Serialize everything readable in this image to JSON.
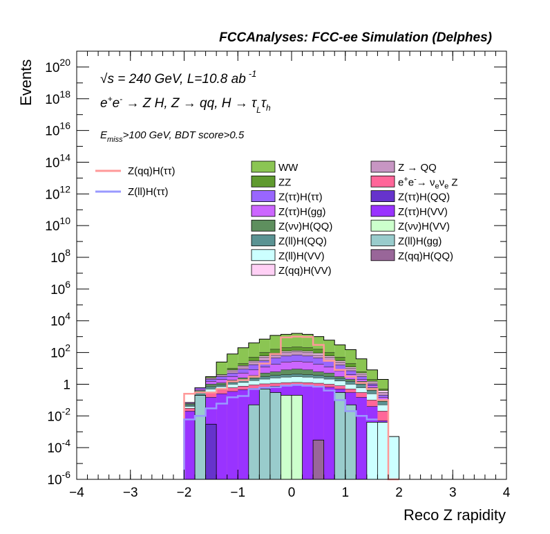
{
  "chart_data": {
    "type": "histogram",
    "title": "FCCAnalyses: FCC-ee Simulation (Delphes)",
    "xlabel": "Reco Z rapidity",
    "ylabel": "Events",
    "xlim": [
      -4,
      4
    ],
    "ylim": [
      1e-06,
      1e+21
    ],
    "yscale": "log",
    "grid": false,
    "legend_placement": "upper-center",
    "annotations": [
      {
        "id": "energy",
        "parts": [
          "√",
          "s",
          " = 240 GeV, L=10.8 ab",
          "-1"
        ]
      },
      {
        "id": "process",
        "parts": [
          "e",
          "+",
          "e",
          "-",
          " → Z H, Z  → qq, H  → τ",
          "L",
          "τ",
          "h"
        ]
      },
      {
        "id": "cut",
        "parts": [
          "E",
          "miss",
          ">100 GeV, BDT score>0.5"
        ]
      }
    ],
    "x_ticks": [
      -4,
      -3,
      -2,
      -1,
      0,
      1,
      2,
      3,
      4
    ],
    "x_tick_labels": [
      "−4",
      "−3",
      "−2",
      "−1",
      "0",
      "1",
      "2",
      "3",
      "4"
    ],
    "y_ticks": [
      {
        "value": 1e+20,
        "base": "10",
        "exp": "20"
      },
      {
        "value": 1e+18,
        "base": "10",
        "exp": "18"
      },
      {
        "value": 1e+16,
        "base": "10",
        "exp": "16"
      },
      {
        "value": 100000000000000.0,
        "base": "10",
        "exp": "14"
      },
      {
        "value": 1000000000000.0,
        "base": "10",
        "exp": "12"
      },
      {
        "value": 10000000000.0,
        "base": "10",
        "exp": "10"
      },
      {
        "value": 100000000.0,
        "base": "10",
        "exp": "8"
      },
      {
        "value": 1000000.0,
        "base": "10",
        "exp": "6"
      },
      {
        "value": 10000.0,
        "base": "10",
        "exp": "4"
      },
      {
        "value": 100.0,
        "base": "10",
        "exp": "2"
      },
      {
        "value": 1,
        "base": "1",
        "exp": ""
      },
      {
        "value": 0.01,
        "base": "10",
        "exp": "-2"
      },
      {
        "value": 0.0001,
        "base": "10",
        "exp": "-4"
      },
      {
        "value": 1e-06,
        "base": "10",
        "exp": "-6"
      }
    ],
    "bin_edges": [
      -2.0,
      -1.8,
      -1.6,
      -1.4,
      -1.2,
      -1.0,
      -0.8,
      -0.6,
      -0.4,
      -0.2,
      0.0,
      0.2,
      0.4,
      0.6,
      0.8,
      1.0,
      1.2,
      1.4,
      1.6,
      1.8,
      2.0
    ],
    "stack_bands": [
      {
        "name": "WW",
        "color": "#8bc553",
        "tops": [
          0.07,
          0.6,
          3,
          25,
          80,
          200,
          400,
          700,
          1200,
          1400,
          1600,
          1400,
          1000,
          600,
          300,
          150,
          40,
          8,
          2,
          null
        ]
      },
      {
        "name": "ZZ",
        "color": "#5f9a2f",
        "tops": [
          0.07,
          0.6,
          2.5,
          4,
          10,
          20,
          50,
          100,
          160,
          200,
          220,
          200,
          160,
          100,
          50,
          20,
          6,
          2,
          0.5,
          null
        ]
      },
      {
        "name": "Z(qq)H(VV)",
        "color": "#ffd0f5",
        "tops": [
          0.07,
          0.6,
          2.5,
          4,
          8,
          15,
          30,
          60,
          90,
          120,
          130,
          120,
          90,
          60,
          30,
          12,
          5,
          1.5,
          0.4,
          null
        ]
      },
      {
        "name": "Z → QQ",
        "color": "#c796c3",
        "tops": [
          0.07,
          0.6,
          2.5,
          3.5,
          7,
          13,
          26,
          50,
          70,
          100,
          110,
          100,
          70,
          50,
          25,
          10,
          4,
          1.2,
          0.3,
          null
        ]
      },
      {
        "name": "Z(ττ)H(ττ)",
        "color": "#9966ff",
        "tops": [
          0.07,
          0.6,
          2.0,
          3,
          5,
          9,
          17,
          30,
          45,
          60,
          70,
          60,
          45,
          30,
          16,
          7,
          3,
          1.0,
          0.2,
          null
        ]
      },
      {
        "name": "Z(ττ)H(gg)",
        "color": "#cc66ff",
        "tops": [
          0.07,
          0.5,
          1.5,
          2,
          3,
          5,
          8,
          12,
          18,
          25,
          28,
          25,
          18,
          12,
          7,
          4,
          2,
          0.8,
          0.15,
          null
        ]
      },
      {
        "name": "Z(νν)H(QQ)",
        "color": "#5e8f5e",
        "tops": [
          0.06,
          0.4,
          1.0,
          1.2,
          1.8,
          2.5,
          3.5,
          5,
          6,
          8,
          9,
          8,
          6,
          5,
          3,
          2,
          1.5,
          0.6,
          0.1,
          null
        ]
      },
      {
        "name": "Z(ll)H(QQ)",
        "color": "#5b9393",
        "tops": [
          0.05,
          0.3,
          0.7,
          0.9,
          1.3,
          1.7,
          2.3,
          3,
          3.6,
          4,
          4.3,
          4,
          3.6,
          3,
          2.3,
          1.5,
          1.0,
          0.4,
          0.08,
          null
        ]
      },
      {
        "name": "Z(ll)H(VV)",
        "color": "#ccffff",
        "tops": [
          0.04,
          0.2,
          0.5,
          0.7,
          1.0,
          1.3,
          1.7,
          2.1,
          2.5,
          2.8,
          3.0,
          2.8,
          2.5,
          2.1,
          1.6,
          1.0,
          0.6,
          0.25,
          0.05,
          0.0005
        ]
      },
      {
        "name": "e+e- → νeνe Z",
        "color": "#ff6699",
        "tops": [
          0.03,
          0.1,
          0.3,
          0.45,
          0.6,
          0.75,
          0.9,
          1.05,
          1.15,
          1.25,
          1.3,
          1.25,
          1.15,
          1.0,
          0.8,
          0.5,
          0.3,
          0.1,
          0.02,
          null
        ]
      },
      {
        "name": "Z(ττ)H(VV)",
        "color": "#9933ff",
        "tops": [
          0.02,
          0.06,
          0.15,
          0.25,
          0.35,
          0.45,
          0.55,
          0.65,
          0.75,
          0.85,
          0.9,
          0.85,
          0.75,
          0.65,
          0.5,
          0.3,
          0.15,
          0.04,
          0.005,
          null
        ]
      }
    ],
    "stack_outline_tops": [
      0.07,
      0.6,
      3,
      25,
      80,
      200,
      400,
      700,
      1200,
      1400,
      1600,
      1400,
      1000,
      600,
      300,
      150,
      40,
      8,
      2,
      0.0005
    ],
    "individual_bins": [
      {
        "name": "Z(ll)H(gg)",
        "color": "#99cccc",
        "x0": -1.8,
        "x1": -1.6,
        "top": 0.2
      },
      {
        "name": "Z(ll)H(gg)",
        "color": "#99cccc",
        "x0": -0.8,
        "x1": -0.6,
        "top": 0.05
      },
      {
        "name": "Z(ll)H(gg)",
        "color": "#99cccc",
        "x0": -0.6,
        "x1": -0.4,
        "top": 0.5
      },
      {
        "name": "Z(ll)H(gg)",
        "color": "#99cccc",
        "x0": -0.4,
        "x1": -0.2,
        "top": 0.3
      },
      {
        "name": "Z(νν)H(VV)",
        "color": "#ccffcc",
        "x0": -0.2,
        "x1": 0.0,
        "top": 0.2
      },
      {
        "name": "Z(νν)H(VV)",
        "color": "#ccffcc",
        "x0": 0.0,
        "x1": 0.2,
        "top": 0.2
      },
      {
        "name": "Z(ll)H(gg)",
        "color": "#99cccc",
        "x0": 0.8,
        "x1": 1.0,
        "top": 0.3
      },
      {
        "name": "Z(ll)H(gg)",
        "color": "#99cccc",
        "x0": 1.0,
        "x1": 1.2,
        "top": 0.05
      },
      {
        "name": "Z(ll)H(VV)",
        "color": "#ccffff",
        "x0": 1.4,
        "x1": 1.6,
        "top": 0.004
      },
      {
        "name": "Z(ll)H(VV)",
        "color": "#ccffff",
        "x0": 1.6,
        "x1": 1.8,
        "top": 0.004
      },
      {
        "name": "Z(ττ)H(QQ)",
        "color": "#6633cc",
        "x0": -1.6,
        "x1": -1.4,
        "top": 0.003
      },
      {
        "name": "Z(qq)H(QQ)",
        "color": "#996699",
        "x0": 0.4,
        "x1": 0.6,
        "top": 0.0003
      }
    ],
    "series": [
      {
        "name": "Z(qq)H(ττ)",
        "color": "#ff9999",
        "values": [
          0.25,
          0.3,
          0.3,
          0.5,
          1.5,
          1.8,
          3,
          20,
          80,
          900,
          1000,
          950,
          300,
          30,
          8,
          3,
          1.2,
          0.5,
          0.1,
          1e-06
        ]
      },
      {
        "name": "Z(ll)H(ττ)",
        "color": "#9999ff",
        "values": [
          0.006,
          0.01,
          0.03,
          0.06,
          0.15,
          0.18,
          0.5,
          0.6,
          0.65,
          0.8,
          0.9,
          0.8,
          0.7,
          0.4,
          0.1,
          0.02,
          0.01,
          0.006,
          null,
          null
        ]
      }
    ],
    "legend_left": [
      {
        "name": "Z(qq)H(ττ)",
        "color": "#ff9999",
        "kind": "line"
      },
      {
        "name": "Z(ll)H(ττ)",
        "color": "#9999ff",
        "kind": "line"
      }
    ],
    "legend_mid": [
      {
        "label": "WW",
        "color": "#8bc553"
      },
      {
        "label": "ZZ",
        "color": "#5f9a2f"
      },
      {
        "label": "Z(ττ)H(ττ)",
        "color": "#9966ff"
      },
      {
        "label": "Z(ττ)H(gg)",
        "color": "#cc66ff"
      },
      {
        "label": "Z(νν)H(QQ)",
        "color": "#5e8f5e"
      },
      {
        "label": "Z(ll)H(QQ)",
        "color": "#5b9393"
      },
      {
        "label": "Z(ll)H(VV)",
        "color": "#ccffff"
      },
      {
        "label": "Z(qq)H(VV)",
        "color": "#ffd0f5"
      }
    ],
    "legend_right": [
      {
        "label": "Z → QQ",
        "color": "#c796c3"
      },
      {
        "label": "e+e- → νeνe Z",
        "color": "#ff6699",
        "parts": [
          "e",
          "+",
          "e",
          "-",
          "→ ν",
          "e",
          "ν",
          "e",
          " Z"
        ]
      },
      {
        "label": "Z(ττ)H(QQ)",
        "color": "#6633cc"
      },
      {
        "label": "Z(ττ)H(VV)",
        "color": "#9933ff"
      },
      {
        "label": "Z(νν)H(VV)",
        "color": "#ccffcc"
      },
      {
        "label": "Z(ll)H(gg)",
        "color": "#99cccc"
      },
      {
        "label": "Z(qq)H(QQ)",
        "color": "#996699"
      }
    ]
  }
}
